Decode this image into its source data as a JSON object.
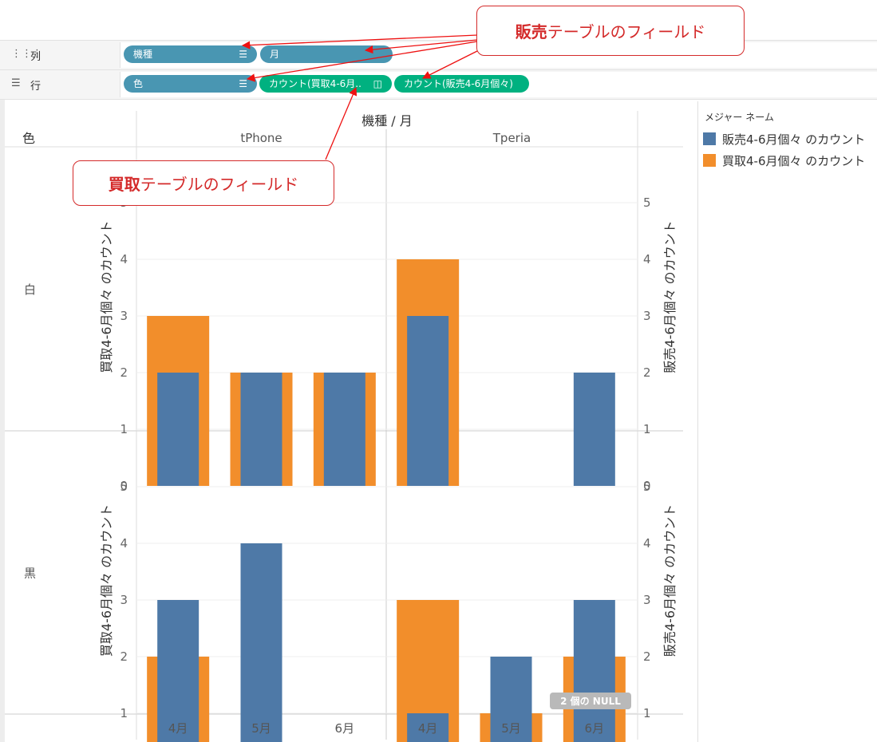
{
  "shelves": {
    "columns": {
      "label": "列",
      "pills": [
        {
          "label": "機種",
          "sorted": true
        },
        {
          "label": "月",
          "sorted": false
        }
      ]
    },
    "rows": {
      "label": "行",
      "pills": [
        {
          "label": "色",
          "sorted": true
        },
        {
          "label": "カウント(買取4-6月..",
          "sorted": false
        },
        {
          "label": "カウント(販売4-6月個々)",
          "sorted": false
        }
      ]
    }
  },
  "callouts": {
    "sales": {
      "bold": "販売",
      "rest": "テーブルのフィールド"
    },
    "purchase": {
      "bold": "買取",
      "rest": "テーブルのフィールド"
    }
  },
  "legend": {
    "title": "メジャー ネーム",
    "items": [
      {
        "label": "販売4-6月個々 のカウント",
        "color": "#4e79a7"
      },
      {
        "label": "買取4-6月個々 のカウント",
        "color": "#f28e2b"
      }
    ]
  },
  "null_badge": "2 個の NULL",
  "chart_data": {
    "type": "bar",
    "title": "機種 / 月",
    "row_header": "色",
    "columns": [
      "tPhone",
      "Tperia"
    ],
    "rows": [
      "白",
      "黒"
    ],
    "categories": [
      "4月",
      "5月",
      "6月"
    ],
    "ylabel_left": "買取4-6月個々 のカウント",
    "ylabel_right": "販売4-6月個々 のカウント",
    "ylim": [
      0,
      5
    ],
    "yticks": [
      0,
      1,
      2,
      3,
      4,
      5
    ],
    "series": [
      {
        "name": "買取4-6月個々 のカウント",
        "color": "#f28e2b",
        "values": {
          "白": {
            "tPhone": [
              3,
              2,
              2
            ],
            "Tperia": [
              4,
              null,
              null
            ]
          },
          "黒": {
            "tPhone": [
              2,
              null,
              null
            ],
            "Tperia": [
              3,
              1,
              2
            ]
          }
        }
      },
      {
        "name": "販売4-6月個々 のカウント",
        "color": "#4e79a7",
        "values": {
          "白": {
            "tPhone": [
              2,
              2,
              2
            ],
            "Tperia": [
              3,
              null,
              2
            ]
          },
          "黒": {
            "tPhone": [
              3,
              4,
              null
            ],
            "Tperia": [
              1,
              2,
              3
            ]
          }
        }
      }
    ]
  }
}
